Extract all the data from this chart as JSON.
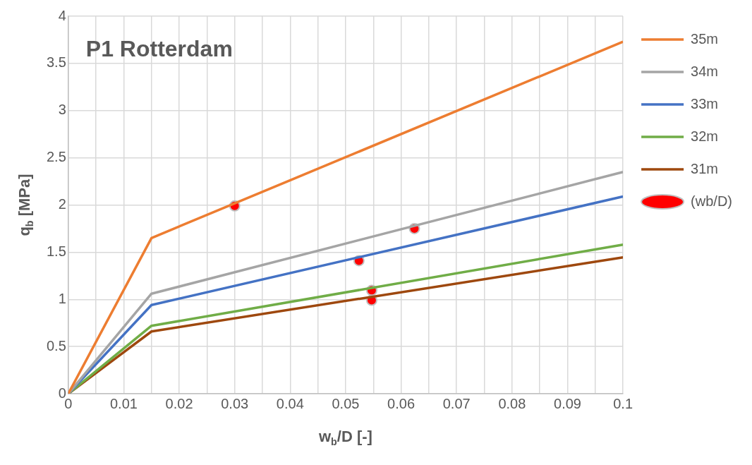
{
  "chart_data": {
    "type": "line",
    "title": "P1 Rotterdam",
    "xlabel": "w$_{b}$/D [-]",
    "ylabel": "q$_{b}$ [MPa]",
    "xlim": [
      0,
      0.1
    ],
    "ylim": [
      0,
      4
    ],
    "xticks": [
      0,
      {
        "value": 0.005,
        "label": null
      },
      0.01,
      {
        "value": 0.015,
        "label": null
      },
      0.02,
      {
        "value": 0.025,
        "label": null
      },
      0.03,
      {
        "value": 0.035,
        "label": null
      },
      0.04,
      {
        "value": 0.045,
        "label": null
      },
      0.05,
      {
        "value": 0.055,
        "label": null
      },
      0.06,
      {
        "value": 0.065,
        "label": null
      },
      0.07,
      {
        "value": 0.075,
        "label": null
      },
      0.08,
      {
        "value": 0.085,
        "label": null
      },
      0.09,
      {
        "value": 0.095,
        "label": null
      },
      0.1
    ],
    "yticks": [
      0,
      0.5,
      1,
      1.5,
      2,
      2.5,
      3,
      3.5,
      4
    ],
    "grid": true,
    "legend": "right",
    "marker": "none",
    "line_style": "solid",
    "series": [
      {
        "name": "35m",
        "color": "#ed7d31",
        "x": [
          0,
          0.015,
          0.1
        ],
        "values": [
          0,
          1.65,
          3.73
        ]
      },
      {
        "name": "34m",
        "color": "#a5a5a5",
        "x": [
          0,
          0.015,
          0.1
        ],
        "values": [
          0,
          1.06,
          2.35
        ]
      },
      {
        "name": "33m",
        "color": "#4472c4",
        "x": [
          0,
          0.015,
          0.1
        ],
        "values": [
          0,
          0.94,
          2.09
        ]
      },
      {
        "name": "32m",
        "color": "#70ad47",
        "x": [
          0,
          0.015,
          0.1
        ],
        "values": [
          0,
          0.72,
          1.58
        ]
      },
      {
        "name": "31m",
        "color": "#9e480e",
        "x": [
          0,
          0.015,
          0.1
        ],
        "values": [
          0,
          0.66,
          1.445
        ]
      },
      {
        "name": "(wb/D)",
        "type": "scatter",
        "marker": "circle",
        "color": "#ff0000",
        "x": [
          0.03,
          0.0624,
          0.0524,
          0.0547,
          0.0547
        ],
        "values": [
          1.99,
          1.75,
          1.41,
          1.095,
          0.99
        ]
      }
    ]
  }
}
